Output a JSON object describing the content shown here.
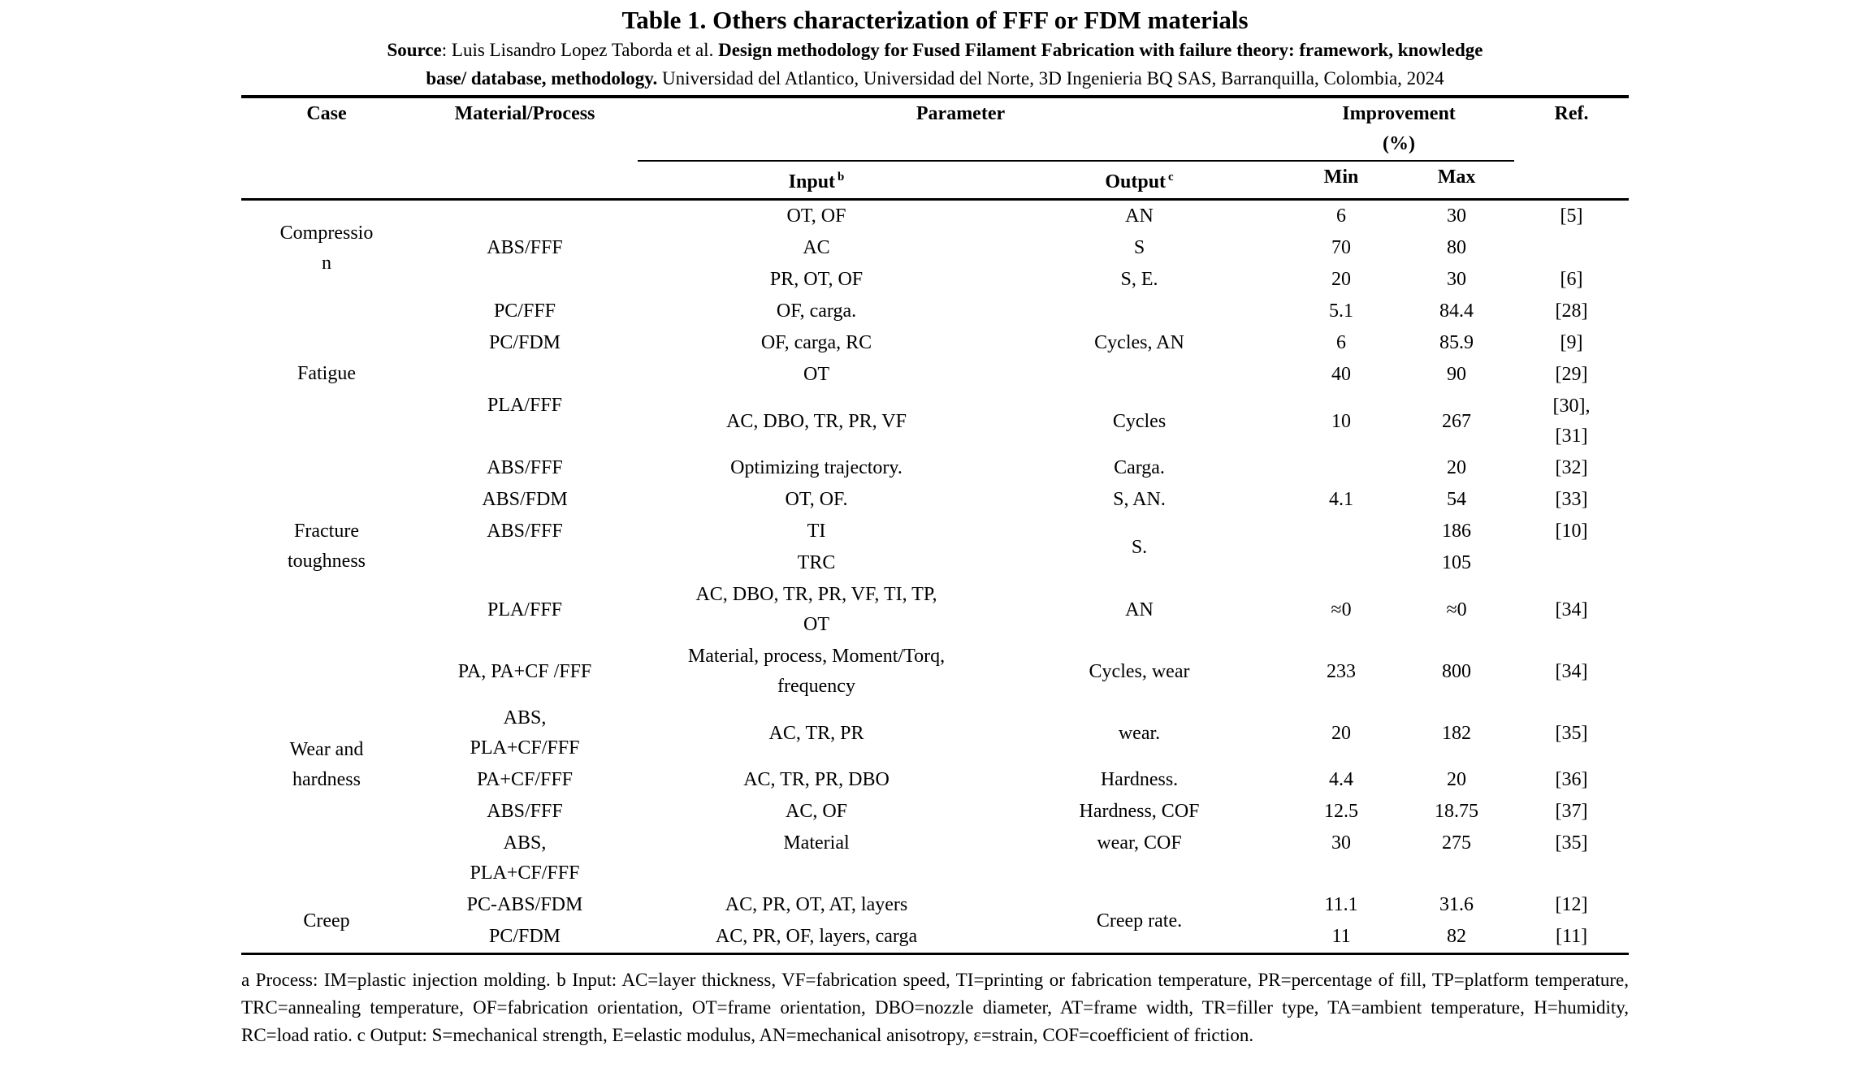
{
  "page_title": "Table 1. Others characterization of FFF or FDM materials",
  "source_line": {
    "label": "Source",
    "authors": ": Luis Lisandro Lopez Taborda et al. ",
    "work": "Design methodology for Fused Filament Fabrication with failure theory: framework, knowledge\nbase/ database, methodology.",
    "publisher": " Universidad del Atlantico, Universidad del Norte, 3D Ingenieria BQ SAS, Barranquilla, Colombia, 2024"
  },
  "table": {
    "header": {
      "case": "Case",
      "material_process": "Material/Process",
      "parameter": "Parameter",
      "improvement": "Improvement\n(%)",
      "ref": "Ref.",
      "input": "Input",
      "input_footnote_mark": "b",
      "output": "Output",
      "output_footnote_mark": "c",
      "min": "Min",
      "max": "Max"
    },
    "rows": [
      {
        "case": "Compression",
        "material": "ABS/FFF",
        "input": "OT, OF",
        "output": "AN",
        "min": "6",
        "max": "30",
        "ref": "[5]"
      },
      {
        "input": "AC",
        "output": "S",
        "min": "70",
        "max": "80",
        "ref": ""
      },
      {
        "input": "PR, OT, OF",
        "output": "S, E.",
        "min": "20",
        "max": "30",
        "ref": "[6]"
      },
      {
        "case": "Fatigue",
        "material": "PC/FFF",
        "input": "OF, carga.",
        "output": "",
        "min": "5.1",
        "max": "84.4",
        "ref": "[28]"
      },
      {
        "material": "PC/FDM",
        "input": "OF, carga, RC",
        "output": "Cycles, AN",
        "min": "6",
        "max": "85.9",
        "ref": "[9]"
      },
      {
        "material": "PLA/FFF",
        "input": "OT",
        "output": "",
        "min": "40",
        "max": "90",
        "ref": "[29]"
      },
      {
        "input": "AC, DBO, TR, PR, VF",
        "output": "Cycles",
        "min": "10",
        "max": "267",
        "ref": "[30],\n[31]"
      },
      {
        "case": "Fracture toughness",
        "material": "ABS/FFF",
        "input": "Optimizing trajectory.",
        "output": "Carga.",
        "min": "",
        "max": "20",
        "ref": "[32]"
      },
      {
        "material": "ABS/FDM",
        "input": "OT, OF.",
        "output": "S, AN.",
        "min": "4.1",
        "max": "54",
        "ref": "[33]"
      },
      {
        "material": "ABS/FFF",
        "input": "TI",
        "output": "S.",
        "min": "",
        "max": "186",
        "ref": "[10]"
      },
      {
        "material": "",
        "input": "TRC",
        "min": "",
        "max": "105",
        "ref": ""
      },
      {
        "material": "PLA/FFF",
        "input": "AC, DBO, TR, PR, VF, TI, TP,\nOT",
        "output": "AN",
        "min": "≈0",
        "max": "≈0",
        "ref": "[34]"
      },
      {
        "case": "Wear and hardness",
        "material": "PA, PA+CF /FFF",
        "input": "Material, process, Moment/Torq,\nfrequency",
        "output": "Cycles, wear",
        "min": "233",
        "max": "800",
        "ref": "[34]"
      },
      {
        "material": "ABS,\nPLA+CF/FFF",
        "input": "AC, TR, PR",
        "output": "wear.",
        "min": "20",
        "max": "182",
        "ref": "[35]"
      },
      {
        "material": "PA+CF/FFF",
        "input": "AC, TR, PR, DBO",
        "output": "Hardness.",
        "min": "4.4",
        "max": "20",
        "ref": "[36]"
      },
      {
        "material": "ABS/FFF",
        "input": "AC, OF",
        "output": "Hardness, COF",
        "min": "12.5",
        "max": "18.75",
        "ref": "[37]"
      },
      {
        "material": "ABS,\nPLA+CF/FFF",
        "input": "Material",
        "output": "wear, COF",
        "min": "30",
        "max": "275",
        "ref": "[35]"
      },
      {
        "case": "Creep",
        "material": "PC-ABS/FDM",
        "input": "AC, PR, OT, AT, layers",
        "output": "Creep rate.",
        "min": "11.1",
        "max": "31.6",
        "ref": "[12]"
      },
      {
        "material": "PC/FDM",
        "input": "AC, PR, OF, layers, carga",
        "min": "11",
        "max": "82",
        "ref": "[11]"
      }
    ]
  },
  "footnote": "a Process: IM=plastic injection molding. b Input: AC=layer thickness, VF=fabrication speed, TI=printing or fabrication temperature, PR=percentage of fill, TP=platform temperature, TRC=annealing temperature, OF=fabrication orientation, OT=frame orientation, DBO=nozzle diameter, AT=frame width, TR=filler type, TA=ambient temperature, H=humidity, RC=load ratio. c Output: S=mechanical strength, E=elastic modulus, AN=mechanical anisotropy, ε=strain, COF=coefficient of friction."
}
